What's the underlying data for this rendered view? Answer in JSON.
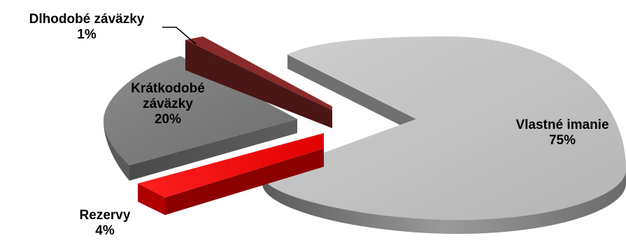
{
  "chart_data": {
    "type": "pie",
    "style": "3d-exploded",
    "slices": [
      {
        "label": "Vlastné imanie",
        "value": 75,
        "value_label": "75%",
        "color": "#bdbdbd"
      },
      {
        "label": "Krátkodobé záväzky",
        "label_lines": [
          "Krátkodobé",
          "záväzky"
        ],
        "value": 20,
        "value_label": "20%",
        "color": "#7c7c7c"
      },
      {
        "label": "Rezervy",
        "value": 4,
        "value_label": "4%",
        "color": "#ff0000"
      },
      {
        "label": "Dlhodobé záväzky",
        "value": 1,
        "value_label": "1%",
        "color": "#8a2a2a"
      }
    ]
  }
}
